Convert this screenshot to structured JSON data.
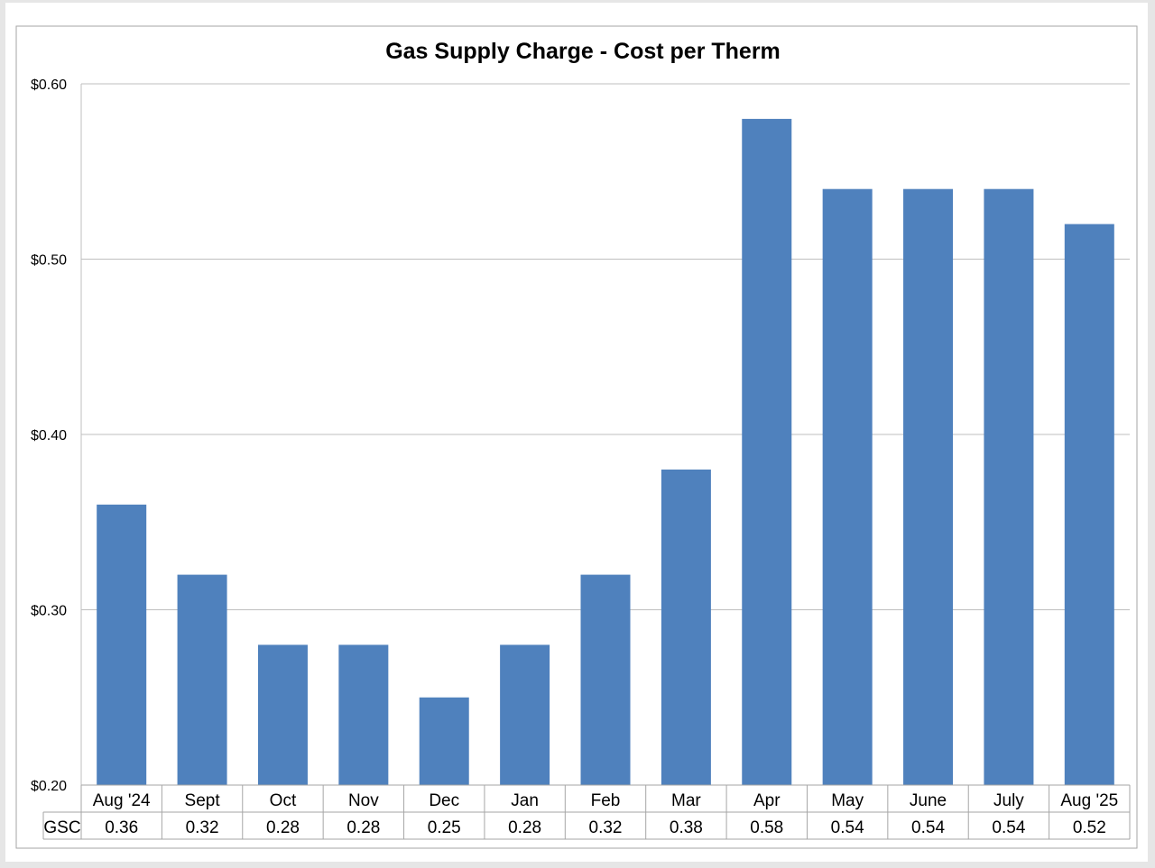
{
  "colors": {
    "bar": "#4f81bd",
    "gridline": "#bfbfbf",
    "border": "#a6a6a6",
    "background": "#ffffff",
    "frame": "#e6e6e6"
  },
  "chart_data": {
    "type": "bar",
    "title": "Gas Supply Charge - Cost per Therm",
    "xlabel": "",
    "ylabel": "",
    "categories": [
      "Aug '24",
      "Sept",
      "Oct",
      "Nov",
      "Dec",
      "Jan",
      "Feb",
      "Mar",
      "Apr",
      "May",
      "June",
      "July",
      "Aug '25"
    ],
    "series": [
      {
        "name": "GSC",
        "values": [
          0.36,
          0.32,
          0.28,
          0.28,
          0.25,
          0.28,
          0.32,
          0.38,
          0.58,
          0.54,
          0.54,
          0.54,
          0.52
        ]
      }
    ],
    "table_values": [
      "0.36",
      "0.32",
      "0.28",
      "0.28",
      "0.25",
      "0.28",
      "0.32",
      "0.38",
      "0.58",
      "0.54",
      "0.54",
      "0.54",
      "0.52"
    ],
    "ylim": [
      0.2,
      0.6
    ],
    "yticks": [
      0.2,
      0.3,
      0.4,
      0.5,
      0.6
    ],
    "ytick_labels": [
      "$0.20",
      "$0.30",
      "$0.40",
      "$0.50",
      "$0.60"
    ],
    "grid": true,
    "legend": "data table"
  }
}
